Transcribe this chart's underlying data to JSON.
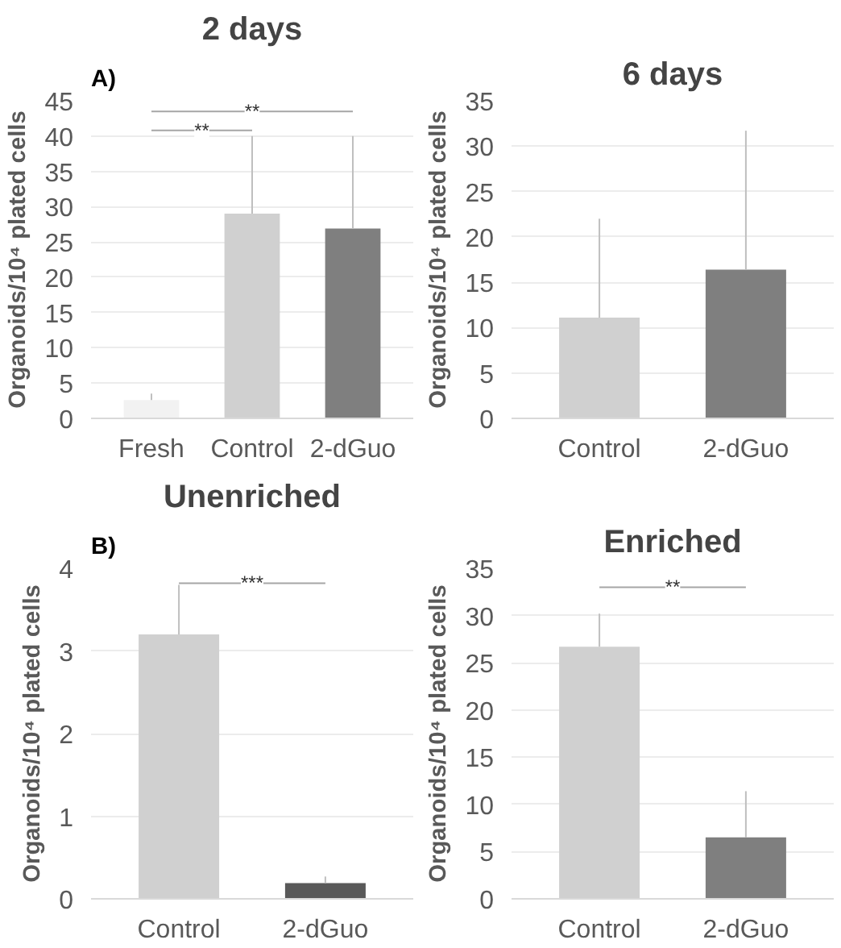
{
  "chart_data": [
    {
      "type": "bar",
      "title": "2 days",
      "ylabel": "Organoids/10⁴ plated cells",
      "categories": [
        "Fresh",
        "Control",
        "2-dGuo"
      ],
      "values": [
        2.6,
        29,
        26.9
      ],
      "colors": [
        "#f2f2f2",
        "#d0d0d0",
        "#7f7f7f"
      ],
      "errors": [
        [
          2.6,
          3.5
        ],
        [
          29,
          40
        ],
        [
          26.9,
          40
        ]
      ],
      "ylim": [
        0,
        45
      ],
      "yticks": [
        0,
        5,
        10,
        15,
        20,
        25,
        30,
        35,
        40,
        45
      ],
      "grid": "y",
      "annotations": [
        "A)",
        "**",
        "**"
      ]
    },
    {
      "type": "bar",
      "title": "6 days",
      "ylabel": "Organoids/10⁴ plated cells",
      "categories": [
        "Control",
        "2-dGuo"
      ],
      "values": [
        11.1,
        16.4
      ],
      "colors": [
        "#d0d0d0",
        "#7f7f7f"
      ],
      "errors": [
        [
          11.1,
          22
        ],
        [
          16.4,
          31.7
        ]
      ],
      "ylim": [
        0,
        35
      ],
      "yticks": [
        0,
        5,
        10,
        15,
        20,
        25,
        30,
        35
      ],
      "grid": "y"
    },
    {
      "type": "bar",
      "title": "Unenriched",
      "ylabel": "Organoids/10⁴ plated cells",
      "categories": [
        "Control",
        "2-dGuo"
      ],
      "values": [
        3.2,
        0.19
      ],
      "colors": [
        "#d0d0d0",
        "#595959"
      ],
      "errors": [
        [
          3.2,
          3.8
        ],
        [
          0.19,
          0.27
        ]
      ],
      "ylim": [
        0,
        4
      ],
      "yticks": [
        0,
        1,
        2,
        3,
        4
      ],
      "grid": "y",
      "annotations": [
        "B)",
        "***"
      ]
    },
    {
      "type": "bar",
      "title": "Enriched",
      "ylabel": "Organoids/10⁴ plated cells",
      "categories": [
        "Control",
        "2-dGuo"
      ],
      "values": [
        26.7,
        6.5
      ],
      "colors": [
        "#d0d0d0",
        "#7f7f7f"
      ],
      "errors": [
        [
          26.7,
          30.2
        ],
        [
          6.5,
          11.4
        ]
      ],
      "ylim": [
        0,
        35
      ],
      "yticks": [
        0,
        5,
        10,
        15,
        20,
        25,
        30,
        35
      ],
      "grid": "y",
      "annotations": [
        "**"
      ]
    }
  ]
}
